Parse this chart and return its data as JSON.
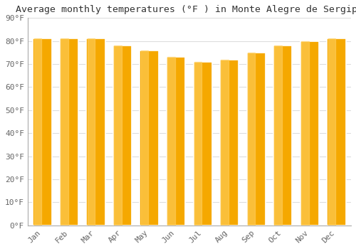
{
  "title": "Average monthly temperatures (°F ) in Monte Alegre de Sergipe",
  "months": [
    "Jan",
    "Feb",
    "Mar",
    "Apr",
    "May",
    "Jun",
    "Jul",
    "Aug",
    "Sep",
    "Oct",
    "Nov",
    "Dec"
  ],
  "values": [
    81,
    81,
    81,
    78,
    76,
    73,
    71,
    72,
    75,
    78,
    80,
    81
  ],
  "bar_color_main": "#F5A800",
  "bar_color_light": "#FFD060",
  "bar_color_edge": "#E8980A",
  "background_color": "#FFFFFF",
  "plot_bg_color": "#FFFFFF",
  "grid_color": "#DDDDDD",
  "ylim": [
    0,
    90
  ],
  "yticks": [
    0,
    10,
    20,
    30,
    40,
    50,
    60,
    70,
    80,
    90
  ],
  "ytick_labels": [
    "0°F",
    "10°F",
    "20°F",
    "30°F",
    "40°F",
    "50°F",
    "60°F",
    "70°F",
    "80°F",
    "90°F"
  ],
  "title_fontsize": 9.5,
  "tick_fontsize": 8,
  "font_family": "monospace",
  "tick_color": "#666666",
  "title_color": "#333333"
}
